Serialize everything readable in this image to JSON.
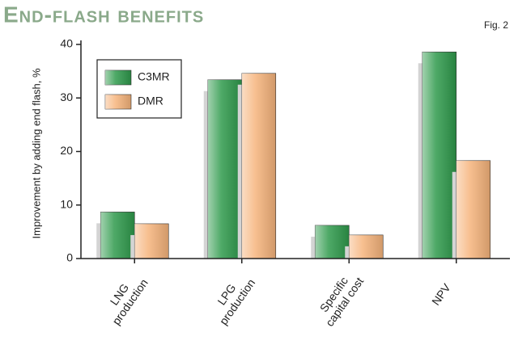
{
  "chart_data": {
    "type": "bar",
    "title": "End-flash benefits",
    "figure_label": "Fig. 2",
    "ylabel": "Improvement by adding end flash, %",
    "categories": [
      [
        "LNG",
        "production"
      ],
      [
        "LPG",
        "production"
      ],
      [
        "Specific",
        "capital cost"
      ],
      [
        "NPV"
      ]
    ],
    "series": [
      {
        "name": "C3MR",
        "color": "#2f9a4c",
        "values": [
          8.7,
          33.4,
          6.2,
          38.6
        ]
      },
      {
        "name": "DMR",
        "color": "#f6b47c",
        "values": [
          6.5,
          34.6,
          4.4,
          18.3
        ]
      }
    ],
    "ylim": [
      0,
      40
    ],
    "yticks": [
      0,
      10,
      20,
      30,
      40
    ],
    "grid": false,
    "legend": "upper left"
  }
}
